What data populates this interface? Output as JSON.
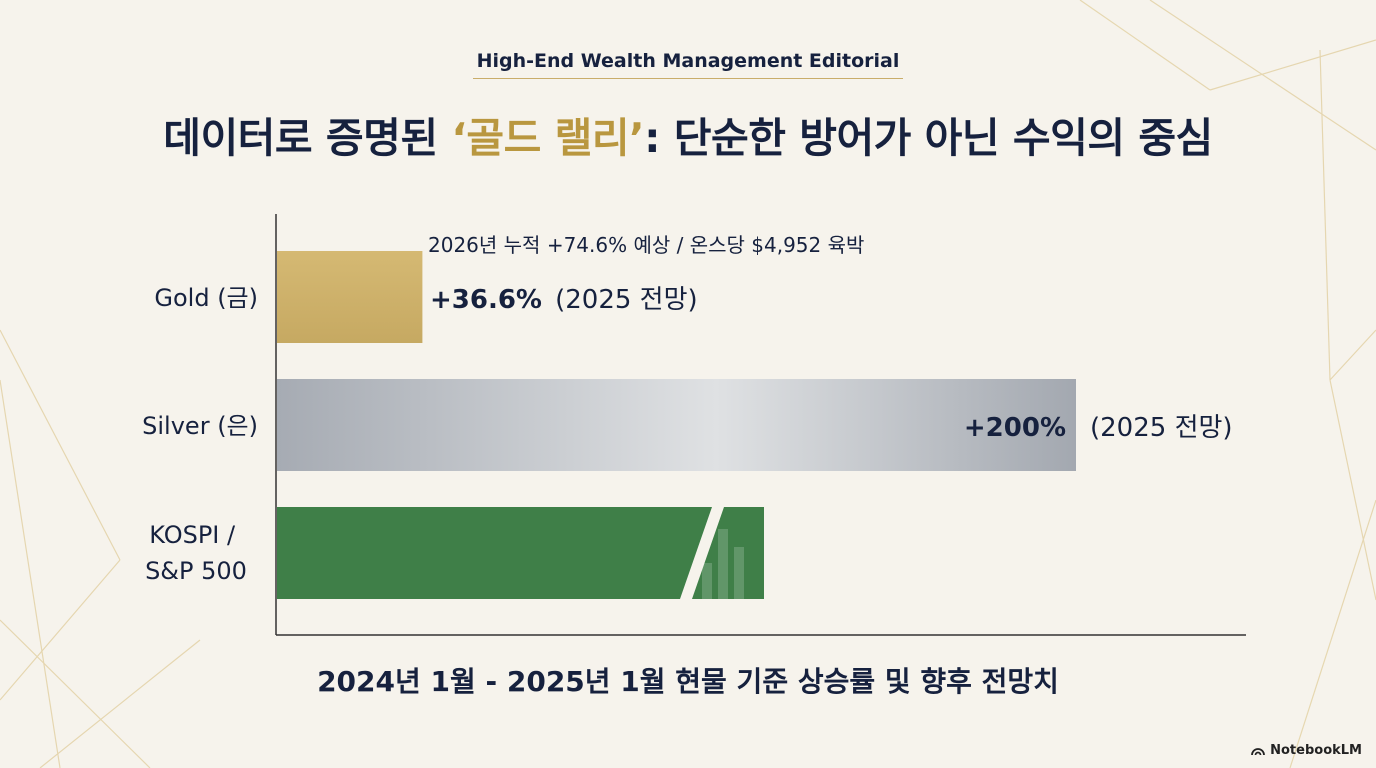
{
  "header": {
    "kicker": "High-End Wealth Management Editorial",
    "title_pre": "데이터로 증명된 ",
    "title_highlight": "‘골드 랠리’",
    "title_post": ": 단순한 방어가 아닌 수익의 중심"
  },
  "chart_data": {
    "type": "bar",
    "orientation": "horizontal",
    "categories": [
      "Gold (금)",
      "Silver (은)",
      "KOSPI / S&P 500"
    ],
    "values": [
      36.6,
      200,
      122
    ],
    "value_labels": [
      "+36.6%",
      "+200%",
      ""
    ],
    "value_suffix": [
      "(2025 전망)",
      "(2025 전망)",
      ""
    ],
    "annotation": "2026년 누적 +74.6% 예상 / 온스당 $4,952 육박",
    "xlabel": "2024년 1월 - 2025년 1월 현물 기준 상승률 및 향후 전망치",
    "xlim": [
      0,
      240
    ],
    "axis_break": true,
    "colors": {
      "gold": "#cdb06a",
      "silver": "#b9bcc2",
      "equity": "#3f7f48"
    }
  },
  "brand": {
    "name": "NotebookLM",
    "icon": "notebooklm-logo-icon"
  }
}
